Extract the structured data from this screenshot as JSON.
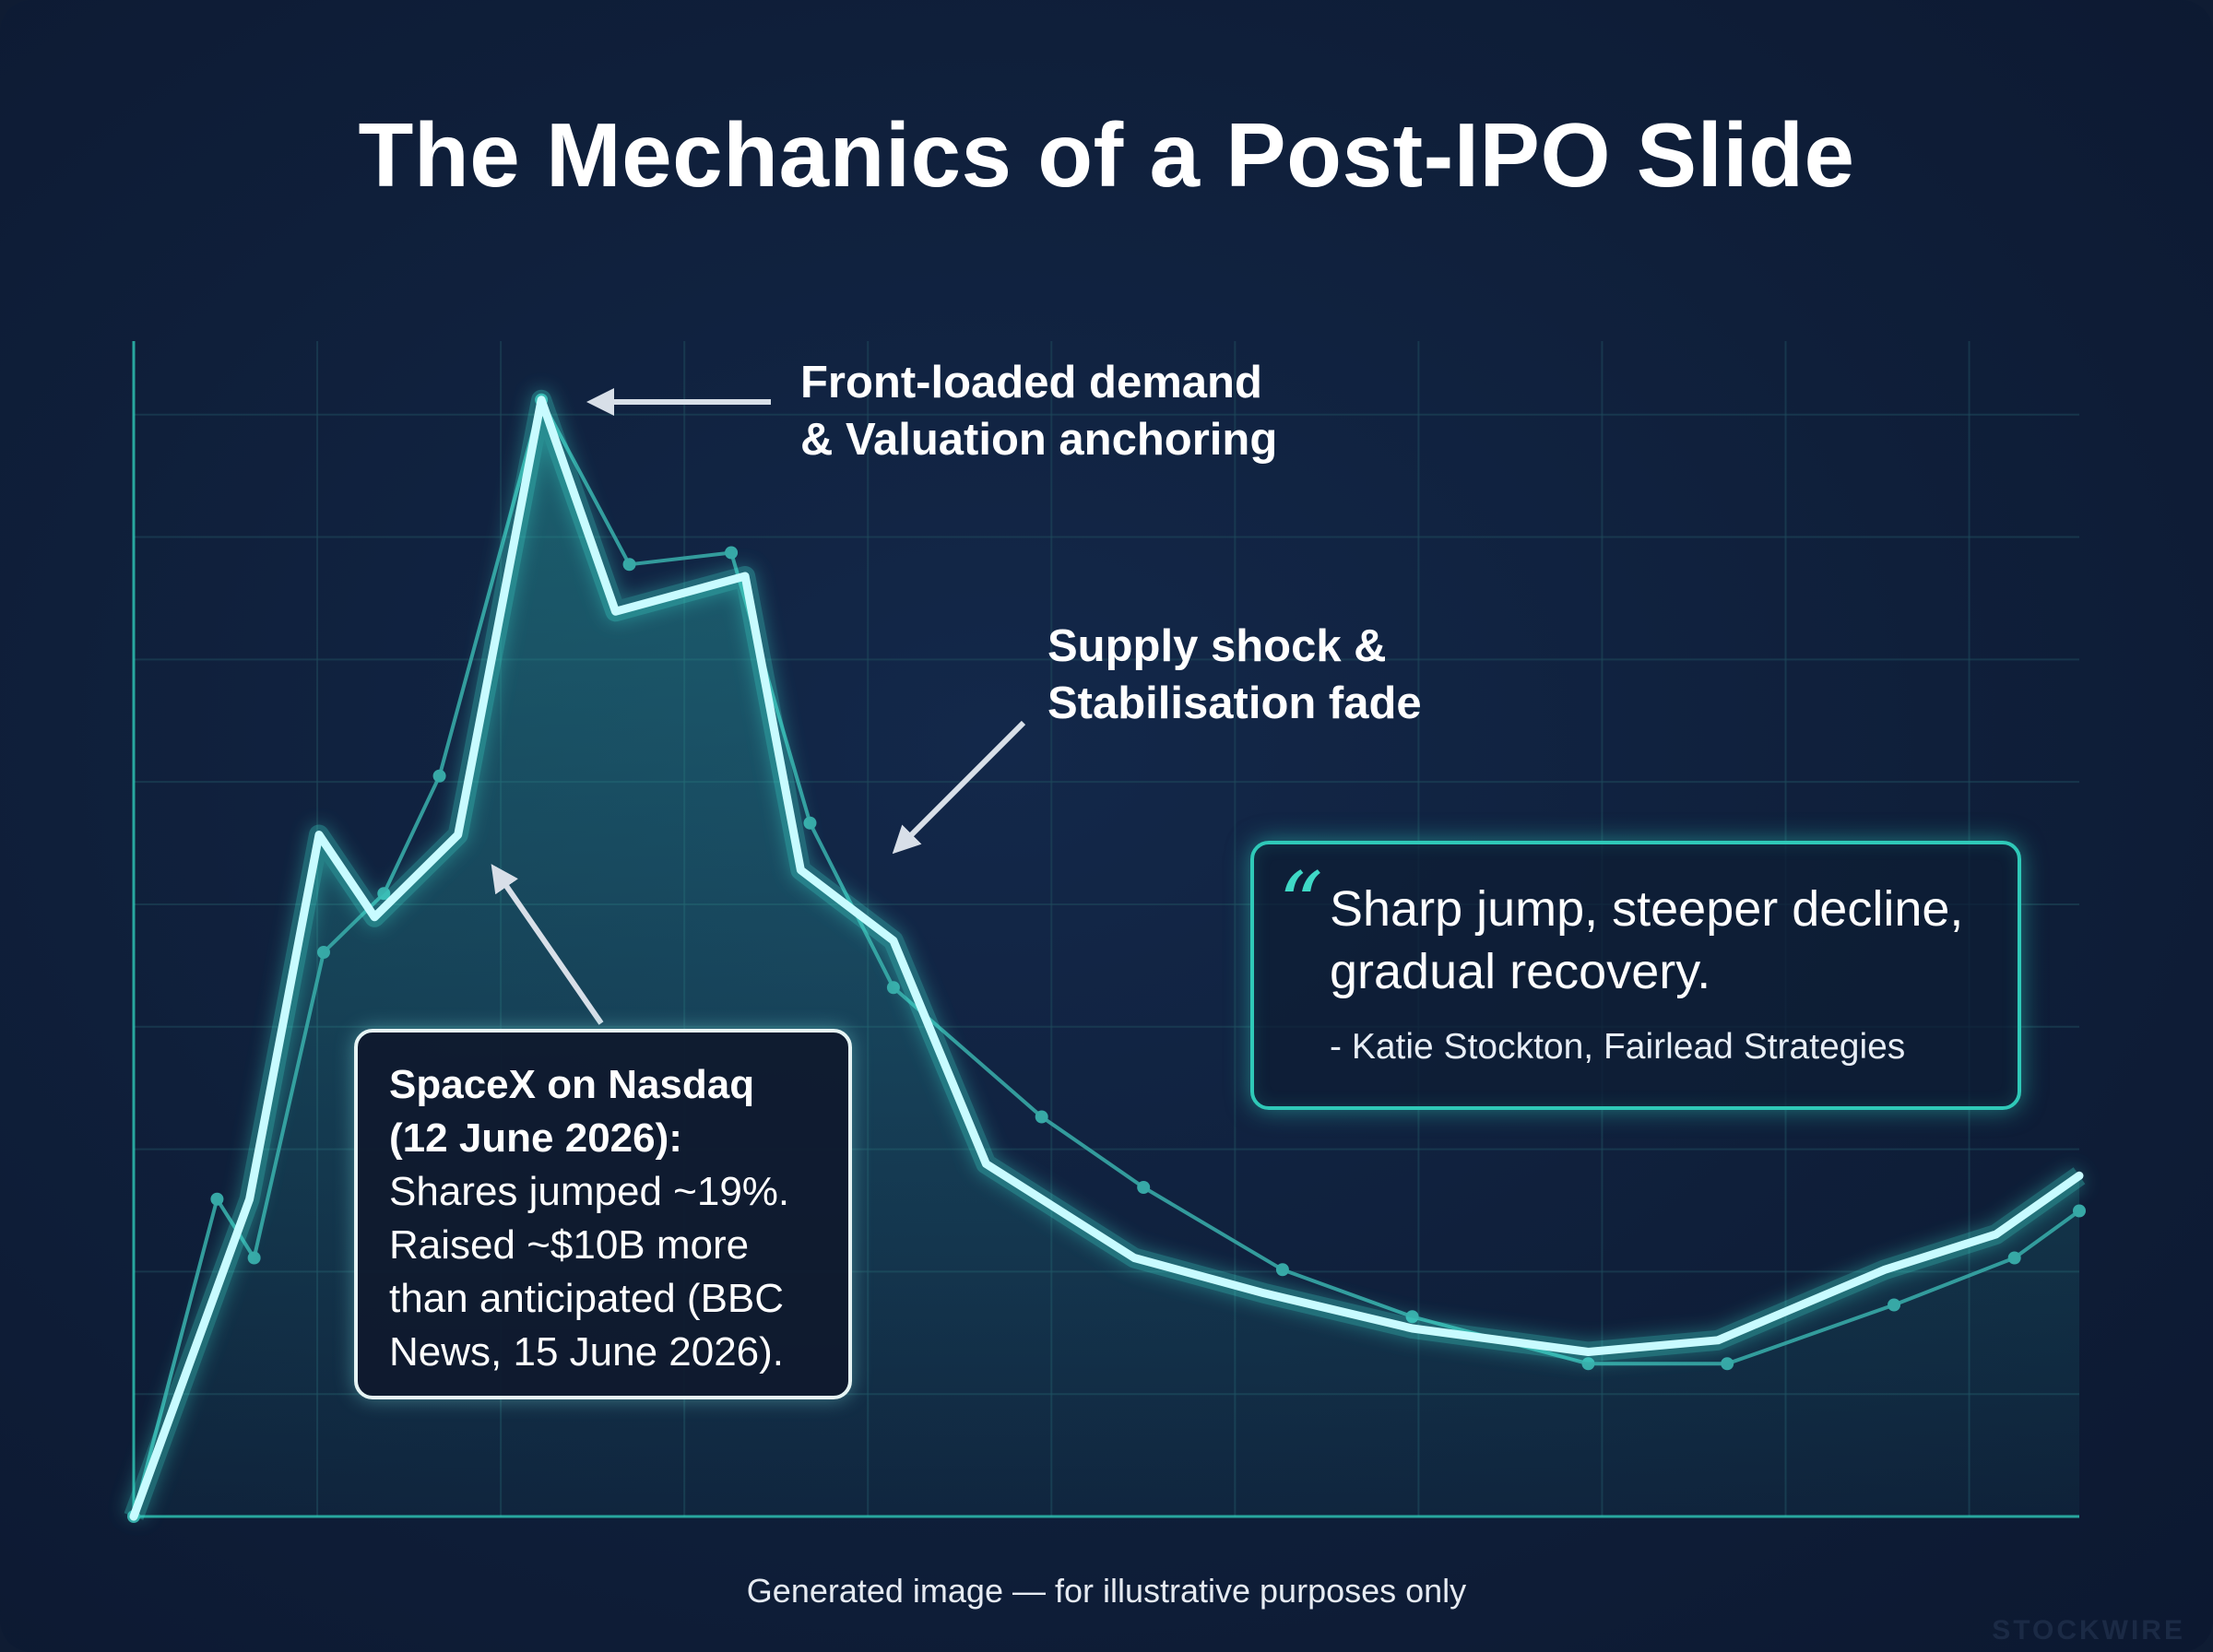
{
  "title": "The Mechanics of a Post-IPO Slide",
  "colors": {
    "background": "#0f1c33",
    "main_line": "#c8fbff",
    "secondary_line": "#37a8a6",
    "accent": "#2fc9b8",
    "grid": "#1f4a5c"
  },
  "chart_data": {
    "type": "line",
    "title": "The Mechanics of a Post-IPO Slide",
    "xlabel": "",
    "ylabel": "",
    "grid": true,
    "axes_tick_labels": false,
    "xlim": [
      0,
      21
    ],
    "ylim": [
      0,
      100
    ],
    "series": [
      {
        "role": "main",
        "x": [
          0,
          1.25,
          2,
          2.6,
          3.5,
          4.4,
          5.2,
          6.6,
          7.2,
          8.2,
          9.2,
          10.8,
          12.2,
          13.8,
          15.7,
          17.1,
          18.9,
          20.1,
          21
        ],
        "y": [
          0,
          27,
          58,
          51,
          58,
          95,
          77,
          80,
          55,
          49,
          30,
          22,
          19,
          16,
          14,
          15,
          21,
          24,
          29
        ]
      },
      {
        "role": "secondary",
        "x": [
          0,
          0.9,
          1.3,
          2.05,
          2.7,
          3.3,
          4.4,
          5.35,
          6.45,
          7.3,
          8.2,
          9.8,
          10.9,
          12.4,
          13.8,
          15.7,
          17.2,
          19.0,
          20.3,
          21
        ],
        "y": [
          0,
          27,
          22,
          48,
          53,
          63,
          95,
          81,
          82,
          59,
          45,
          34,
          28,
          21,
          17,
          13,
          13,
          18,
          22,
          26
        ]
      }
    ],
    "annotations": [
      {
        "id": "peak",
        "lines": [
          "Front-loaded demand",
          "& Valuation anchoring"
        ]
      },
      {
        "id": "supply",
        "lines": [
          "Supply shock &",
          "Stabilisation fade"
        ]
      }
    ]
  },
  "callout": {
    "heading_lines": [
      "SpaceX on Nasdaq",
      "(12 June 2026):"
    ],
    "body_lines": [
      "Shares jumped ~19%.",
      "Raised ~$10B more",
      "than anticipated (BBC",
      "News, 15 June 2026)."
    ]
  },
  "quote": {
    "mark": "“",
    "lines": [
      "Sharp jump, steeper decline,",
      "gradual recovery."
    ],
    "attribution": "- Katie Stockton, Fairlead Strategies"
  },
  "footer": "Generated image — for illustrative purposes only",
  "watermark": "STOCKWIRE"
}
